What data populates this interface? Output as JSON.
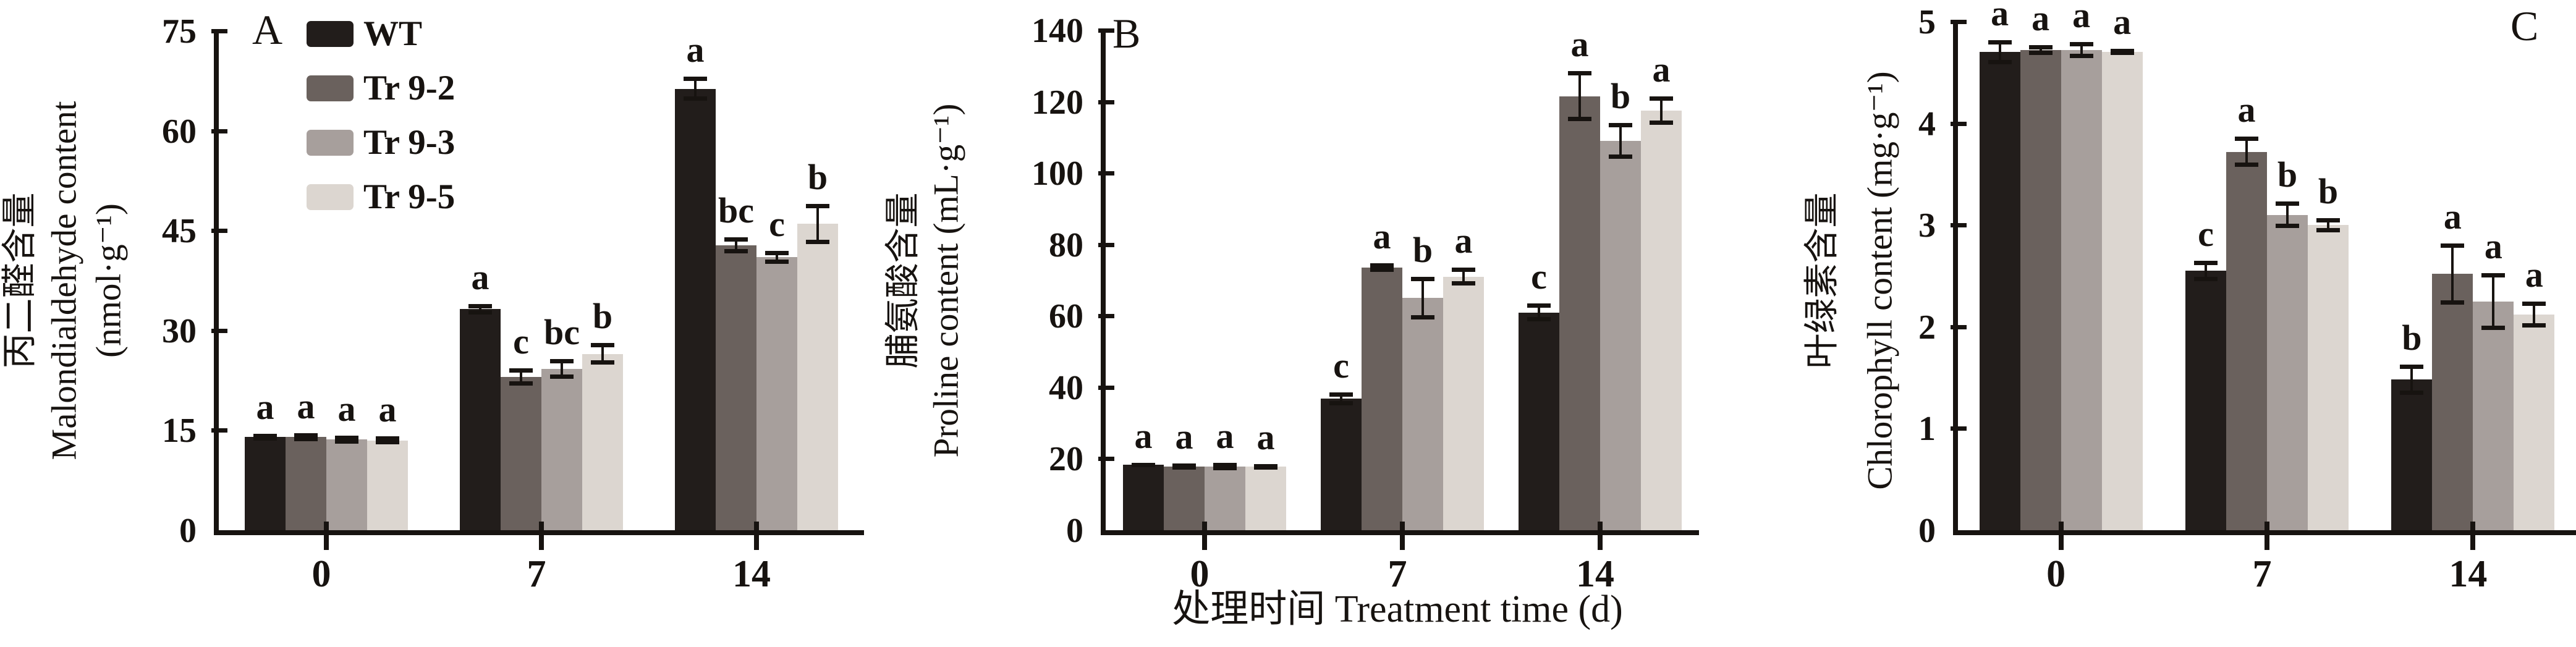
{
  "figure": {
    "x_axis_title": "处理时间 Treatment time (d)",
    "legend": [
      "WT",
      "Tr 9-2",
      "Tr 9-3",
      "Tr 9-5"
    ],
    "colors": {
      "axis": "#171310",
      "background": "#ffffff",
      "WT": "#221d1b",
      "Tr 9-2": "#6a615d",
      "Tr 9-3": "#a79f9c",
      "Tr 9-5": "#dcd6d0"
    }
  },
  "chart_data": [
    {
      "type": "bar",
      "panel_label": "A",
      "ylabel_zh": "丙二醛含量",
      "ylabel_en": "Malondialdehyde content",
      "ylabel_unit": "(nmol·g⁻¹)",
      "xlabel": "处理时间 Treatment time (d)",
      "categories": [
        "0",
        "7",
        "14"
      ],
      "ylim": [
        0,
        75
      ],
      "yticks": [
        0,
        15,
        30,
        45,
        60,
        75
      ],
      "grid": false,
      "legend_position": "inside-top-left",
      "series": [
        {
          "name": "WT",
          "color": "#221d1b",
          "values": [
            14.0,
            33.2,
            66.3
          ],
          "errors": [
            0.5,
            0.8,
            1.8
          ],
          "letters": [
            "a",
            "a",
            "a"
          ]
        },
        {
          "name": "Tr 9-2",
          "color": "#6a615d",
          "values": [
            14.0,
            23.0,
            42.8
          ],
          "errors": [
            0.6,
            1.3,
            1.2
          ],
          "letters": [
            "a",
            "c",
            "bc"
          ]
        },
        {
          "name": "Tr 9-3",
          "color": "#a79f9c",
          "values": [
            13.6,
            24.2,
            41.0
          ],
          "errors": [
            0.6,
            1.5,
            1.0
          ],
          "letters": [
            "a",
            "bc",
            "c"
          ]
        },
        {
          "name": "Tr 9-5",
          "color": "#dcd6d0",
          "values": [
            13.5,
            26.5,
            46.0
          ],
          "errors": [
            0.6,
            1.6,
            3.0
          ],
          "letters": [
            "a",
            "b",
            "b"
          ]
        }
      ]
    },
    {
      "type": "bar",
      "panel_label": "B",
      "ylabel_zh": "脯氨酸含量",
      "ylabel_en": "Proline content (mL·g⁻¹)",
      "ylabel_unit": "",
      "xlabel": "处理时间 Treatment time (d)",
      "categories": [
        "0",
        "7",
        "14"
      ],
      "ylim": [
        0,
        140
      ],
      "yticks": [
        0,
        20,
        40,
        60,
        80,
        100,
        120,
        140
      ],
      "grid": false,
      "legend_position": "none",
      "series": [
        {
          "name": "WT",
          "color": "#221d1b",
          "values": [
            18.3,
            36.8,
            61.0
          ],
          "errors": [
            0.6,
            1.8,
            2.5
          ],
          "letters": [
            "a",
            "c",
            "c"
          ]
        },
        {
          "name": "Tr 9-2",
          "color": "#6a615d",
          "values": [
            17.8,
            73.5,
            121.5
          ],
          "errors": [
            0.9,
            1.2,
            7.0
          ],
          "letters": [
            "a",
            "a",
            "a"
          ]
        },
        {
          "name": "Tr 9-3",
          "color": "#a79f9c",
          "values": [
            17.8,
            65.0,
            109.0
          ],
          "errors": [
            1.0,
            6.0,
            5.0
          ],
          "letters": [
            "a",
            "b",
            "b"
          ]
        },
        {
          "name": "Tr 9-5",
          "color": "#dcd6d0",
          "values": [
            17.8,
            71.0,
            117.5
          ],
          "errors": [
            0.8,
            2.5,
            4.0
          ],
          "letters": [
            "a",
            "a",
            "a"
          ]
        }
      ]
    },
    {
      "type": "bar",
      "panel_label": "C",
      "ylabel_zh": "叶绿素含量",
      "ylabel_en": "Chlorophyll content (mg·g⁻¹)",
      "ylabel_unit": "",
      "xlabel": "处理时间 Treatment time (d)",
      "categories": [
        "0",
        "7",
        "14"
      ],
      "ylim": [
        0,
        5
      ],
      "yticks": [
        0,
        1,
        2,
        3,
        4,
        5
      ],
      "grid": false,
      "legend_position": "none",
      "series": [
        {
          "name": "WT",
          "color": "#221d1b",
          "values": [
            4.7,
            2.55,
            1.48
          ],
          "errors": [
            0.12,
            0.1,
            0.15
          ],
          "letters": [
            "a",
            "c",
            "b"
          ]
        },
        {
          "name": "Tr 9-2",
          "color": "#6a615d",
          "values": [
            4.72,
            3.72,
            2.52
          ],
          "errors": [
            0.05,
            0.15,
            0.3
          ],
          "letters": [
            "a",
            "a",
            "a"
          ]
        },
        {
          "name": "Tr 9-3",
          "color": "#a79f9c",
          "values": [
            4.72,
            3.1,
            2.25
          ],
          "errors": [
            0.08,
            0.13,
            0.28
          ],
          "letters": [
            "a",
            "b",
            "a"
          ]
        },
        {
          "name": "Tr 9-5",
          "color": "#dcd6d0",
          "values": [
            4.7,
            3.0,
            2.12
          ],
          "errors": [
            0.03,
            0.07,
            0.13
          ],
          "letters": [
            "a",
            "b",
            "a"
          ]
        }
      ]
    }
  ]
}
